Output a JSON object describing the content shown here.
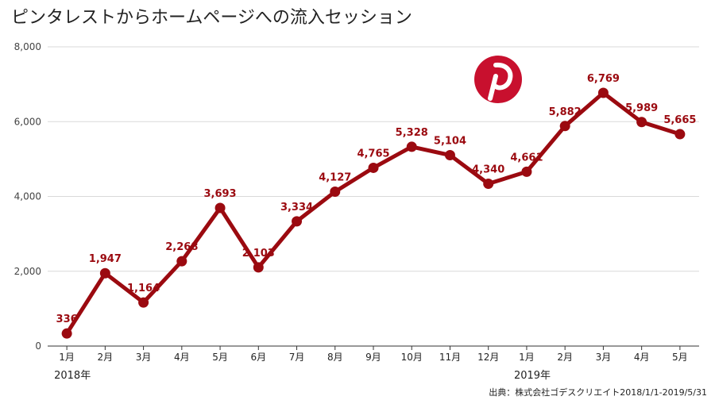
{
  "title": "ピンタレストからホームページへの流入セッション",
  "source": "出典：株式会社ゴデスクリエイト2018/1/1-2019/5/31",
  "year_labels": [
    "2018年",
    "2019年"
  ],
  "colors": {
    "line": "#9b0a10",
    "label": "#9b0a10",
    "grid": "#d9d9d9",
    "logo": "#c8102e"
  },
  "icon": "pinterest-logo-icon",
  "chart_data": {
    "type": "line",
    "categories": [
      "1月",
      "2月",
      "3月",
      "4月",
      "5月",
      "6月",
      "7月",
      "8月",
      "9月",
      "10月",
      "11月",
      "12月",
      "1月",
      "2月",
      "3月",
      "4月",
      "5月"
    ],
    "year_groups": [
      {
        "label": "2018年",
        "start": 0
      },
      {
        "label": "2019年",
        "start": 12
      }
    ],
    "values": [
      336,
      1947,
      1164,
      2268,
      3693,
      2103,
      3334,
      4127,
      4765,
      5328,
      5104,
      4340,
      4661,
      5882,
      6769,
      5989,
      5665
    ],
    "value_labels": [
      "336",
      "1,947",
      "1,164",
      "2,268",
      "3,693",
      "2,103",
      "3,334",
      "4,127",
      "4,765",
      "5,328",
      "5,104",
      "4,340",
      "4,661",
      "5,882",
      "6,769",
      "5,989",
      "5,665"
    ],
    "ylim": [
      0,
      8000
    ],
    "yticks": [
      0,
      2000,
      4000,
      6000,
      8000
    ],
    "ytick_labels": [
      "0",
      "2,000",
      "4,000",
      "6,000",
      "8,000"
    ],
    "grid": true,
    "legend": "none"
  }
}
